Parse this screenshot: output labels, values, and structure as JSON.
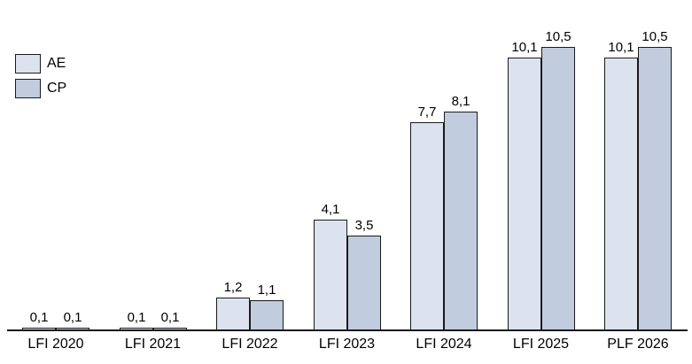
{
  "chart_data": {
    "type": "bar",
    "title": "",
    "xlabel": "",
    "ylabel": "",
    "categories": [
      "LFI 2020",
      "LFI 2021",
      "LFI 2022",
      "LFI 2023",
      "LFI 2024",
      "LFI 2025",
      "PLF 2026"
    ],
    "series": [
      {
        "name": "AE",
        "color": "#dce3ef",
        "values": [
          0.1,
          0.1,
          1.2,
          4.1,
          7.7,
          10.1,
          10.1
        ],
        "labels": [
          "0,1",
          "0,1",
          "1,2",
          "4,1",
          "7,7",
          "10,1",
          "10,1"
        ]
      },
      {
        "name": "CP",
        "color": "#c1ccdf",
        "values": [
          0.1,
          0.1,
          1.1,
          3.5,
          8.1,
          10.5,
          10.5
        ],
        "labels": [
          "0,1",
          "0,1",
          "1,1",
          "3,5",
          "8,1",
          "10,5",
          "10,5"
        ]
      }
    ],
    "ylim": [
      0,
      11.8
    ],
    "grid": false,
    "y_axis_visible": false,
    "x_axis_visible": true,
    "legend_position": "top-left",
    "decimal_separator": ",",
    "bar_border_color": "#1a1a1a",
    "axis_color": "#1a1a1a",
    "text_color": "#000000",
    "background": "#ffffff"
  }
}
